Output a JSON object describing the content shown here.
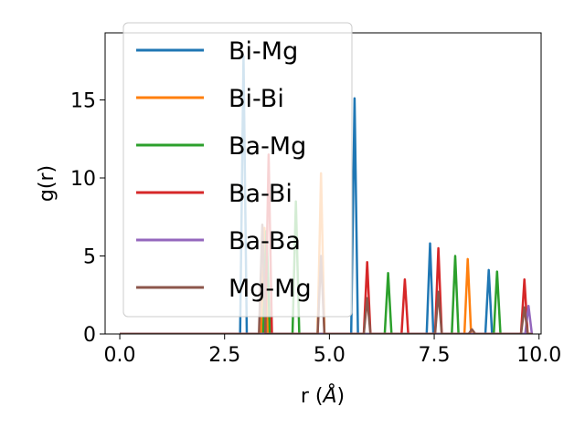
{
  "chart_data": {
    "type": "line",
    "title": "",
    "xlabel": "r (",
    "xlabel_symbol": "Å",
    "xlabel_close": ")",
    "ylabel": "g(r)",
    "xlim": [
      -0.35,
      10.05
    ],
    "ylim": [
      0,
      19.3
    ],
    "xticks": [
      0.0,
      2.5,
      5.0,
      7.5,
      10.0
    ],
    "xtick_labels": [
      "0.0",
      "2.5",
      "5.0",
      "7.5",
      "10.0"
    ],
    "yticks": [
      0,
      5,
      10,
      15
    ],
    "ytick_labels": [
      "0",
      "5",
      "10",
      "15"
    ],
    "grid": false,
    "legend_position": "upper-left",
    "peak_halfwidth": 0.08,
    "x_range": [
      0.0,
      9.85
    ],
    "series": [
      {
        "name": "Bi-Mg",
        "color": "#1f77b4",
        "peaks": [
          [
            2.95,
            17.8
          ],
          [
            5.6,
            15.1
          ],
          [
            7.4,
            5.8
          ],
          [
            8.8,
            4.1
          ]
        ]
      },
      {
        "name": "Bi-Bi",
        "color": "#ff7f0e",
        "peaks": [
          [
            3.45,
            6.8
          ],
          [
            4.8,
            10.3
          ],
          [
            8.3,
            4.8
          ]
        ]
      },
      {
        "name": "Ba-Mg",
        "color": "#2ca02c",
        "peaks": [
          [
            3.5,
            6.6
          ],
          [
            4.2,
            8.5
          ],
          [
            6.4,
            3.9
          ],
          [
            8.0,
            5.0
          ],
          [
            9.0,
            4.0
          ]
        ]
      },
      {
        "name": "Ba-Bi",
        "color": "#d62728",
        "peaks": [
          [
            3.55,
            11.5
          ],
          [
            5.9,
            4.6
          ],
          [
            6.8,
            3.5
          ],
          [
            7.6,
            5.5
          ],
          [
            9.65,
            3.5
          ]
        ]
      },
      {
        "name": "Ba-Ba",
        "color": "#9467bd",
        "peaks": [
          [
            9.75,
            1.8
          ]
        ]
      },
      {
        "name": "Mg-Mg",
        "color": "#8c564b",
        "peaks": [
          [
            3.4,
            7.0
          ],
          [
            4.8,
            5.0
          ],
          [
            5.9,
            2.3
          ],
          [
            7.6,
            2.7
          ],
          [
            8.4,
            0.3
          ],
          [
            9.65,
            1.7
          ]
        ]
      }
    ]
  }
}
